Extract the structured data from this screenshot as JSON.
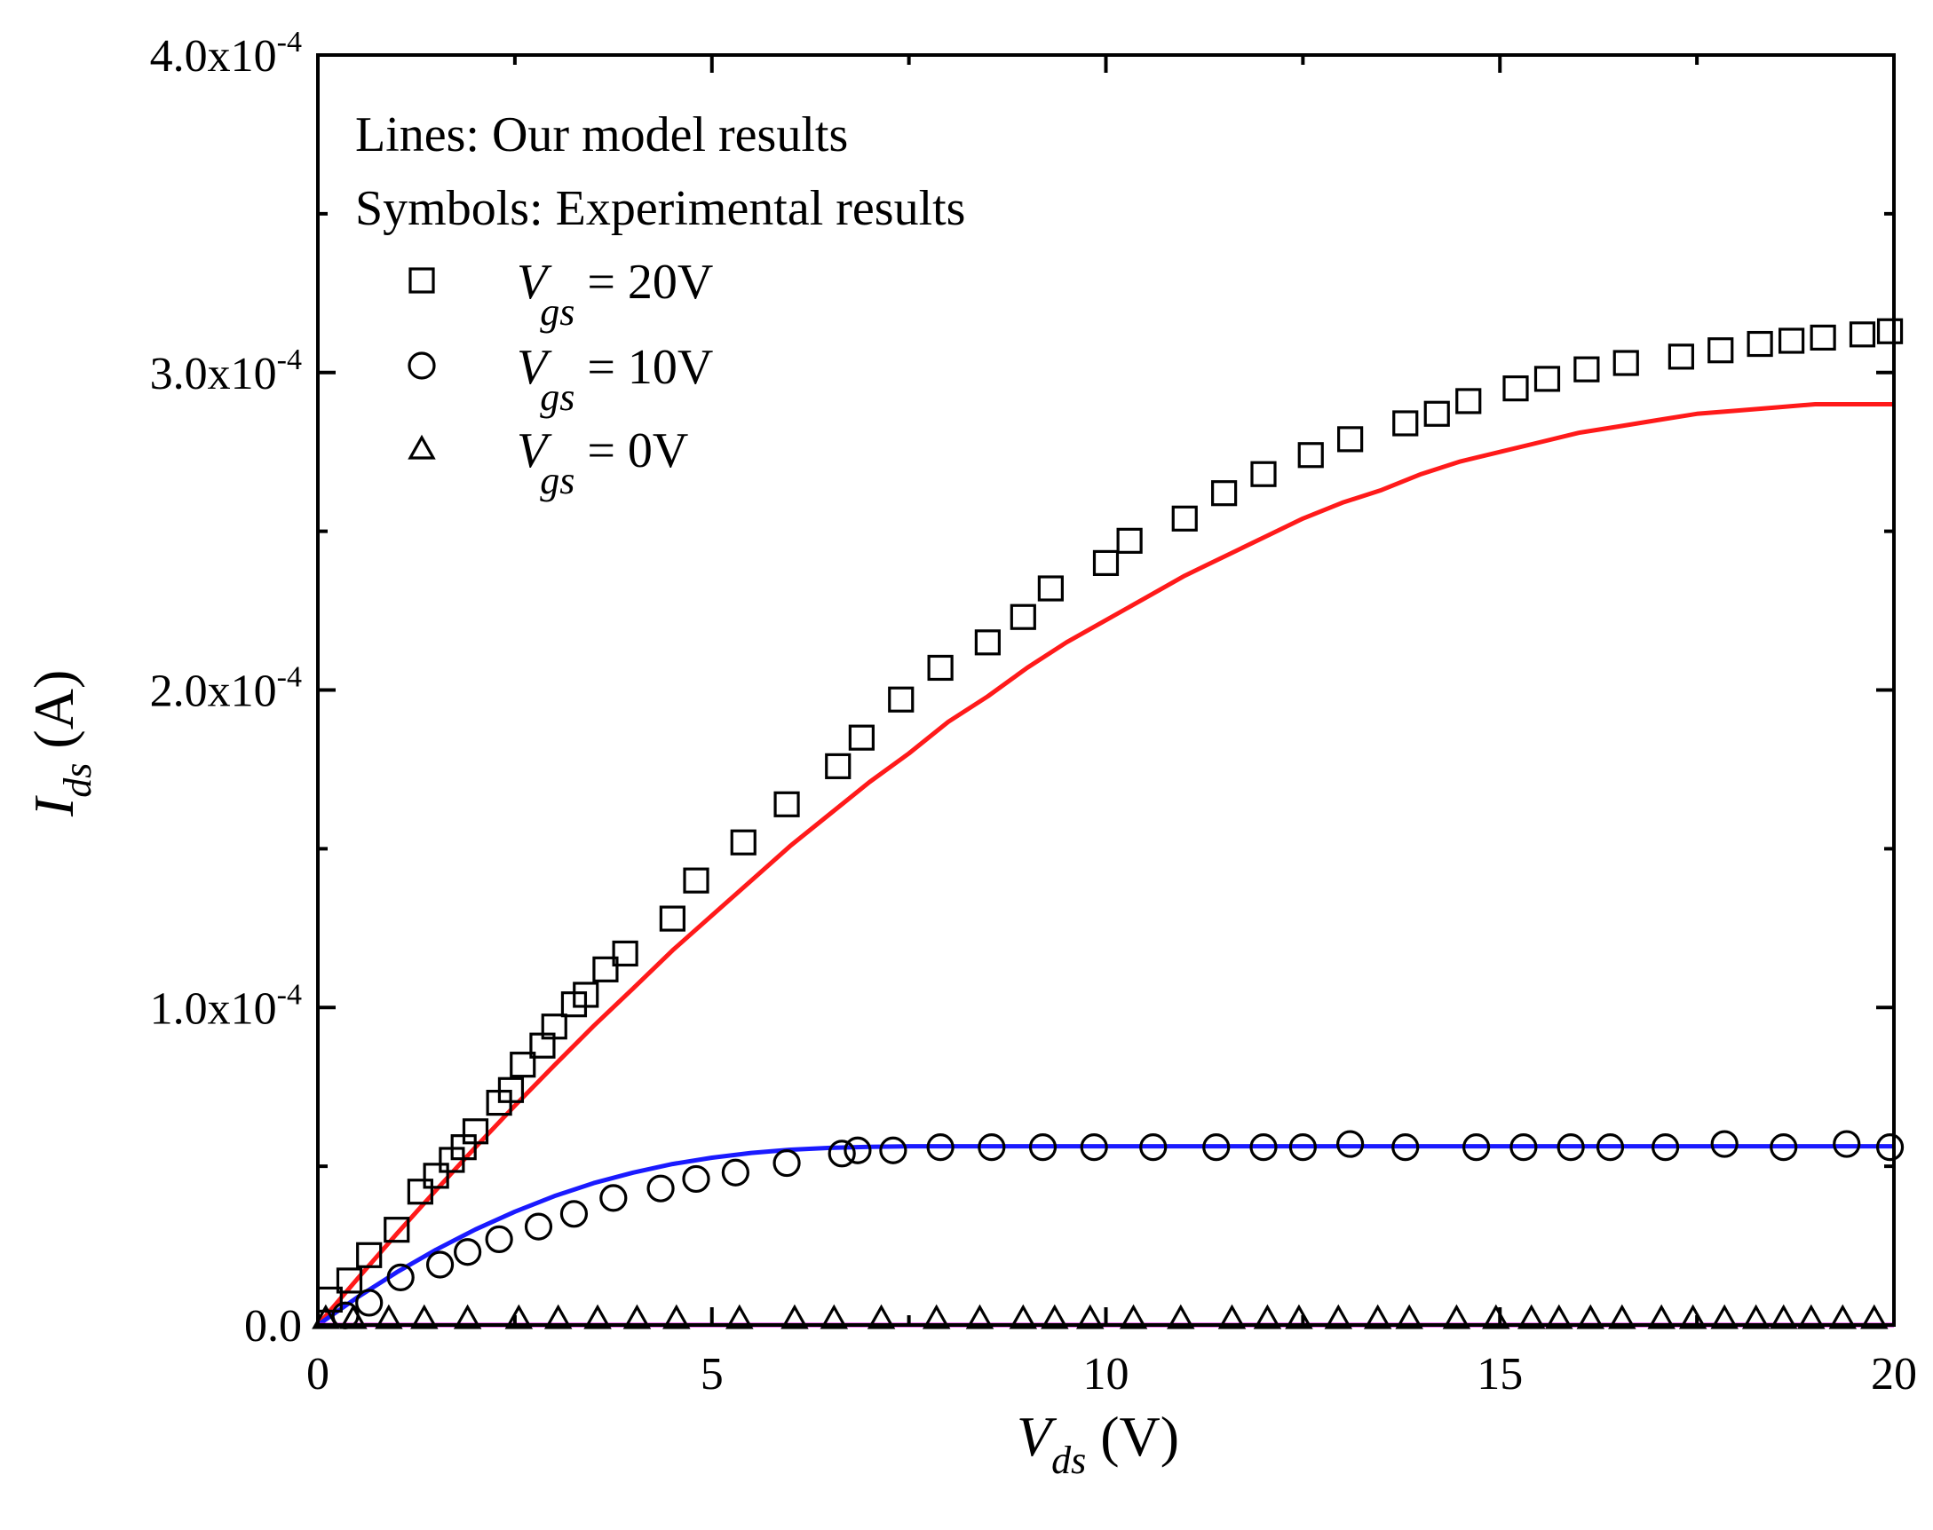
{
  "chart_data": {
    "type": "scatter",
    "xlabel": {
      "symbol": "V",
      "subscript": "ds",
      "unit": "(V)"
    },
    "ylabel": {
      "symbol": "I",
      "subscript": "ds",
      "unit": "(A)"
    },
    "xlim": [
      0,
      20
    ],
    "ylim": [
      0,
      0.0004
    ],
    "x_ticks": [
      {
        "value": 0,
        "label": "0"
      },
      {
        "value": 5,
        "label": "5"
      },
      {
        "value": 10,
        "label": "10"
      },
      {
        "value": 15,
        "label": "15"
      },
      {
        "value": 20,
        "label": "20"
      }
    ],
    "y_ticks": [
      {
        "value": 0,
        "mantissa": "0.0",
        "exponent": ""
      },
      {
        "value": 0.0001,
        "mantissa": "1.0x10",
        "exponent": "-4"
      },
      {
        "value": 0.0002,
        "mantissa": "2.0x10",
        "exponent": "-4"
      },
      {
        "value": 0.0003,
        "mantissa": "3.0x10",
        "exponent": "-4"
      },
      {
        "value": 0.0004,
        "mantissa": "4.0x10",
        "exponent": "-4"
      }
    ],
    "legend_header": [
      "Lines:  Our model results",
      "Symbols: Experimental results"
    ],
    "series": [
      {
        "name": "Vgs = 20V",
        "legend_symbol": "V",
        "legend_sub": "gs",
        "legend_value": " = 20V",
        "marker": "square",
        "line_color": "#ff1a1a",
        "points": [
          [
            0.15,
            8e-06
          ],
          [
            0.4,
            1.4e-05
          ],
          [
            0.65,
            2.2e-05
          ],
          [
            1.0,
            3e-05
          ],
          [
            1.3,
            4.2e-05
          ],
          [
            1.5,
            4.7e-05
          ],
          [
            1.7,
            5.2e-05
          ],
          [
            1.85,
            5.6e-05
          ],
          [
            2.0,
            6.1e-05
          ],
          [
            2.3,
            7e-05
          ],
          [
            2.45,
            7.4e-05
          ],
          [
            2.6,
            8.2e-05
          ],
          [
            2.85,
            8.8e-05
          ],
          [
            3.0,
            9.4e-05
          ],
          [
            3.25,
            0.000101
          ],
          [
            3.4,
            0.000104
          ],
          [
            3.65,
            0.000112
          ],
          [
            3.9,
            0.000117
          ],
          [
            4.5,
            0.000128
          ],
          [
            4.8,
            0.00014
          ],
          [
            5.4,
            0.000152
          ],
          [
            5.95,
            0.000164
          ],
          [
            6.6,
            0.000176
          ],
          [
            6.9,
            0.000185
          ],
          [
            7.4,
            0.000197
          ],
          [
            7.9,
            0.000207
          ],
          [
            8.5,
            0.000215
          ],
          [
            8.95,
            0.000223
          ],
          [
            9.3,
            0.000232
          ],
          [
            10.0,
            0.00024
          ],
          [
            10.3,
            0.000247
          ],
          [
            11.0,
            0.000254
          ],
          [
            11.5,
            0.000262
          ],
          [
            12.0,
            0.000268
          ],
          [
            12.6,
            0.000274
          ],
          [
            13.1,
            0.000279
          ],
          [
            13.8,
            0.000284
          ],
          [
            14.2,
            0.000287
          ],
          [
            14.6,
            0.000291
          ],
          [
            15.2,
            0.000295
          ],
          [
            15.6,
            0.000298
          ],
          [
            16.1,
            0.000301
          ],
          [
            16.6,
            0.000303
          ],
          [
            17.3,
            0.000305
          ],
          [
            17.8,
            0.000307
          ],
          [
            18.3,
            0.000309
          ],
          [
            18.7,
            0.00031
          ],
          [
            19.1,
            0.000311
          ],
          [
            19.6,
            0.000312
          ],
          [
            19.95,
            0.000313
          ]
        ],
        "model_line": [
          [
            0,
            0
          ],
          [
            0.5,
            1.45e-05
          ],
          [
            1,
            2.87e-05
          ],
          [
            1.5,
            4.25e-05
          ],
          [
            2,
            5.6e-05
          ],
          [
            2.5,
            6.91e-05
          ],
          [
            3,
            8.18e-05
          ],
          [
            3.5,
            9.42e-05
          ],
          [
            4,
            0.000106
          ],
          [
            4.5,
            0.000118
          ],
          [
            5,
            0.000129
          ],
          [
            5.5,
            0.00014
          ],
          [
            6,
            0.000151
          ],
          [
            6.5,
            0.000161
          ],
          [
            7,
            0.000171
          ],
          [
            7.5,
            0.00018
          ],
          [
            8,
            0.00019
          ],
          [
            8.5,
            0.000198
          ],
          [
            9,
            0.000207
          ],
          [
            9.5,
            0.000215
          ],
          [
            10,
            0.000222
          ],
          [
            10.5,
            0.000229
          ],
          [
            11,
            0.000236
          ],
          [
            11.5,
            0.000242
          ],
          [
            12,
            0.000248
          ],
          [
            12.5,
            0.000254
          ],
          [
            13,
            0.000259
          ],
          [
            13.5,
            0.000263
          ],
          [
            14,
            0.000268
          ],
          [
            14.5,
            0.000272
          ],
          [
            15,
            0.000275
          ],
          [
            15.5,
            0.000278
          ],
          [
            16,
            0.000281
          ],
          [
            16.5,
            0.000283
          ],
          [
            17,
            0.000285
          ],
          [
            17.5,
            0.000287
          ],
          [
            18,
            0.000288
          ],
          [
            18.5,
            0.000289
          ],
          [
            19,
            0.00029
          ],
          [
            19.5,
            0.00029
          ],
          [
            20,
            0.00029
          ]
        ]
      },
      {
        "name": "Vgs = 10V",
        "legend_symbol": "V",
        "legend_sub": "gs",
        "legend_value": " = 10V",
        "marker": "circle",
        "line_color": "#1a1aff",
        "points": [
          [
            0.35,
            3e-06
          ],
          [
            0.65,
            7e-06
          ],
          [
            1.05,
            1.5e-05
          ],
          [
            1.55,
            1.9e-05
          ],
          [
            1.9,
            2.3e-05
          ],
          [
            2.3,
            2.7e-05
          ],
          [
            2.8,
            3.1e-05
          ],
          [
            3.25,
            3.5e-05
          ],
          [
            3.75,
            4e-05
          ],
          [
            4.35,
            4.3e-05
          ],
          [
            4.8,
            4.6e-05
          ],
          [
            5.3,
            4.8e-05
          ],
          [
            5.95,
            5.1e-05
          ],
          [
            6.65,
            5.4e-05
          ],
          [
            6.85,
            5.5e-05
          ],
          [
            7.3,
            5.5e-05
          ],
          [
            7.9,
            5.6e-05
          ],
          [
            8.55,
            5.6e-05
          ],
          [
            9.2,
            5.6e-05
          ],
          [
            9.85,
            5.6e-05
          ],
          [
            10.6,
            5.6e-05
          ],
          [
            11.4,
            5.6e-05
          ],
          [
            12.0,
            5.6e-05
          ],
          [
            12.5,
            5.6e-05
          ],
          [
            13.1,
            5.7e-05
          ],
          [
            13.8,
            5.6e-05
          ],
          [
            14.7,
            5.6e-05
          ],
          [
            15.3,
            5.6e-05
          ],
          [
            15.9,
            5.6e-05
          ],
          [
            16.4,
            5.6e-05
          ],
          [
            17.1,
            5.6e-05
          ],
          [
            17.85,
            5.7e-05
          ],
          [
            18.6,
            5.6e-05
          ],
          [
            19.4,
            5.7e-05
          ],
          [
            19.95,
            5.6e-05
          ]
        ],
        "model_line": [
          [
            0,
            0
          ],
          [
            0.5,
            8.7e-06
          ],
          [
            1,
            1.66e-05
          ],
          [
            1.5,
            2.37e-05
          ],
          [
            2,
            3.01e-05
          ],
          [
            2.5,
            3.57e-05
          ],
          [
            3,
            4.06e-05
          ],
          [
            3.5,
            4.47e-05
          ],
          [
            4,
            4.8e-05
          ],
          [
            4.5,
            5.07e-05
          ],
          [
            5,
            5.27e-05
          ],
          [
            5.5,
            5.42e-05
          ],
          [
            6,
            5.52e-05
          ],
          [
            6.5,
            5.58e-05
          ],
          [
            7,
            5.61e-05
          ],
          [
            7.5,
            5.63e-05
          ],
          [
            8,
            5.63e-05
          ],
          [
            10,
            5.63e-05
          ],
          [
            12,
            5.63e-05
          ],
          [
            14,
            5.63e-05
          ],
          [
            16,
            5.63e-05
          ],
          [
            18,
            5.63e-05
          ],
          [
            20,
            5.63e-05
          ]
        ]
      },
      {
        "name": "Vgs = 0V",
        "legend_symbol": "V",
        "legend_sub": "gs",
        "legend_value": " = 0V",
        "marker": "triangle",
        "line_color": "#e600e6",
        "points": [
          [
            0.1,
            2e-06
          ],
          [
            0.45,
            2e-06
          ],
          [
            0.9,
            2e-06
          ],
          [
            1.35,
            2e-06
          ],
          [
            1.9,
            2e-06
          ],
          [
            2.55,
            2e-06
          ],
          [
            3.05,
            2e-06
          ],
          [
            3.55,
            2e-06
          ],
          [
            4.05,
            2e-06
          ],
          [
            4.55,
            2e-06
          ],
          [
            5.35,
            2e-06
          ],
          [
            6.05,
            2e-06
          ],
          [
            6.55,
            2e-06
          ],
          [
            7.15,
            2e-06
          ],
          [
            7.85,
            2e-06
          ],
          [
            8.4,
            2e-06
          ],
          [
            8.95,
            2e-06
          ],
          [
            9.35,
            2e-06
          ],
          [
            9.8,
            2e-06
          ],
          [
            10.35,
            2e-06
          ],
          [
            10.95,
            2e-06
          ],
          [
            11.6,
            2e-06
          ],
          [
            12.05,
            2e-06
          ],
          [
            12.45,
            2e-06
          ],
          [
            12.95,
            2e-06
          ],
          [
            13.45,
            2e-06
          ],
          [
            13.85,
            2e-06
          ],
          [
            14.45,
            2e-06
          ],
          [
            14.95,
            2e-06
          ],
          [
            15.4,
            2e-06
          ],
          [
            15.75,
            2e-06
          ],
          [
            16.15,
            2e-06
          ],
          [
            16.55,
            2e-06
          ],
          [
            17.05,
            2e-06
          ],
          [
            17.45,
            2e-06
          ],
          [
            17.85,
            2e-06
          ],
          [
            18.25,
            2e-06
          ],
          [
            18.6,
            2e-06
          ],
          [
            18.95,
            2e-06
          ],
          [
            19.35,
            2e-06
          ],
          [
            19.75,
            2e-06
          ]
        ],
        "model_line": [
          [
            0,
            0
          ],
          [
            20,
            0
          ]
        ]
      }
    ]
  }
}
